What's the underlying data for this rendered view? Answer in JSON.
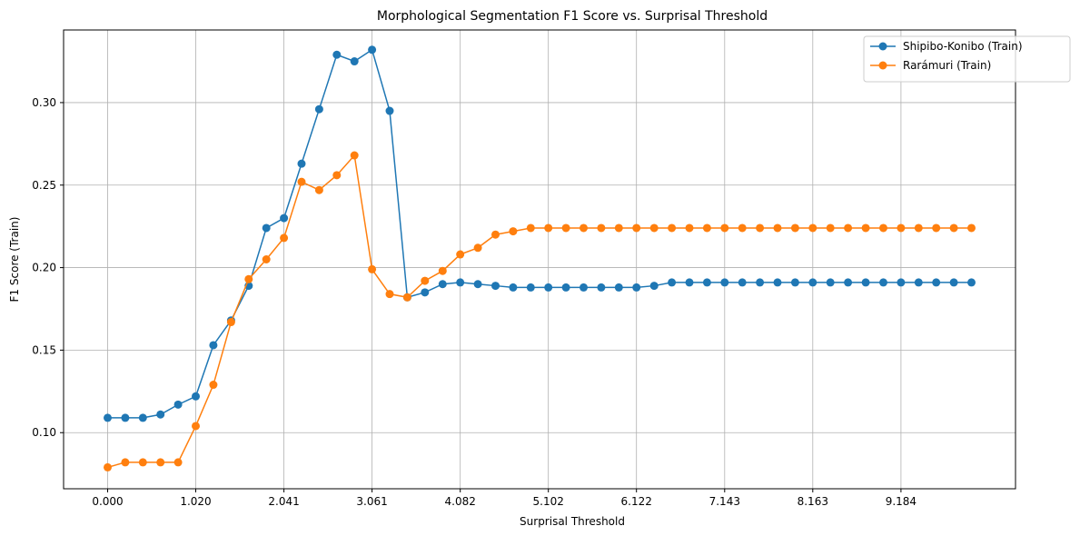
{
  "chart_data": {
    "type": "line",
    "title": "Morphological Segmentation F1 Score vs. Surprisal Threshold",
    "xlabel": "Surprisal Threshold",
    "ylabel": "F1 Score (Train)",
    "xlim": [
      -0.51,
      10.51
    ],
    "ylim": [
      0.066,
      0.344
    ],
    "xticks": [
      0.0,
      1.02,
      2.041,
      3.061,
      4.082,
      5.102,
      6.122,
      7.143,
      8.163,
      9.184
    ],
    "xtick_labels": [
      "0.000",
      "1.020",
      "2.041",
      "3.061",
      "4.082",
      "5.102",
      "6.122",
      "7.143",
      "8.163",
      "9.184"
    ],
    "yticks": [
      0.1,
      0.15,
      0.2,
      0.25,
      0.3
    ],
    "ytick_labels": [
      "0.10",
      "0.15",
      "0.20",
      "0.25",
      "0.30"
    ],
    "grid": true,
    "legend_position": "top-right",
    "x": [
      0.0,
      0.204,
      0.408,
      0.612,
      0.816,
      1.02,
      1.224,
      1.429,
      1.633,
      1.837,
      2.041,
      2.245,
      2.449,
      2.653,
      2.857,
      3.061,
      3.265,
      3.469,
      3.673,
      3.878,
      4.082,
      4.286,
      4.49,
      4.694,
      4.898,
      5.102,
      5.306,
      5.51,
      5.714,
      5.918,
      6.122,
      6.327,
      6.531,
      6.735,
      6.939,
      7.143,
      7.347,
      7.551,
      7.755,
      7.959,
      8.163,
      8.367,
      8.571,
      8.776,
      8.98,
      9.184,
      9.388,
      9.592,
      9.796,
      10.0
    ],
    "series": [
      {
        "name": "Shipibo-Konibo (Train)",
        "color": "#1f77b4",
        "values": [
          0.109,
          0.109,
          0.109,
          0.111,
          0.117,
          0.122,
          0.153,
          0.168,
          0.189,
          0.224,
          0.23,
          0.263,
          0.296,
          0.329,
          0.325,
          0.332,
          0.295,
          0.182,
          0.185,
          0.19,
          0.191,
          0.19,
          0.189,
          0.188,
          0.188,
          0.188,
          0.188,
          0.188,
          0.188,
          0.188,
          0.188,
          0.189,
          0.191,
          0.191,
          0.191,
          0.191,
          0.191,
          0.191,
          0.191,
          0.191,
          0.191,
          0.191,
          0.191,
          0.191,
          0.191,
          0.191,
          0.191,
          0.191,
          0.191,
          0.191
        ]
      },
      {
        "name": "Rarámuri (Train)",
        "color": "#ff7f0e",
        "values": [
          0.079,
          0.082,
          0.082,
          0.082,
          0.082,
          0.104,
          0.129,
          0.167,
          0.193,
          0.205,
          0.218,
          0.252,
          0.247,
          0.256,
          0.268,
          0.199,
          0.184,
          0.182,
          0.192,
          0.198,
          0.208,
          0.212,
          0.22,
          0.222,
          0.224,
          0.224,
          0.224,
          0.224,
          0.224,
          0.224,
          0.224,
          0.224,
          0.224,
          0.224,
          0.224,
          0.224,
          0.224,
          0.224,
          0.224,
          0.224,
          0.224,
          0.224,
          0.224,
          0.224,
          0.224,
          0.224,
          0.224,
          0.224,
          0.224,
          0.224
        ]
      }
    ]
  }
}
